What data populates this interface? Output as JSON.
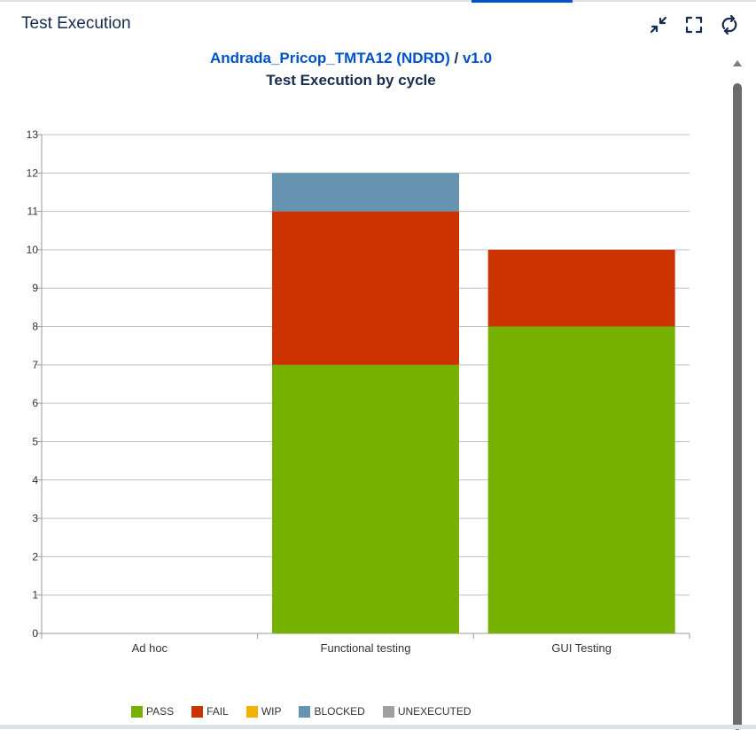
{
  "gadget": {
    "title": "Test Execution",
    "project_link": "Andrada_Pricop_TMTA12 (NDRD)",
    "separator": "/",
    "version_link": "v1.0",
    "subtitle": "Test Execution by cycle",
    "toolbar": {
      "collapse_icon": "collapse-icon",
      "fullscreen_icon": "fullscreen-icon",
      "refresh_icon": "refresh-icon"
    }
  },
  "chart_data": {
    "type": "bar",
    "stacked": true,
    "title": "Test Execution by cycle",
    "categories": [
      "Ad hoc",
      "Functional testing",
      "GUI Testing"
    ],
    "series": [
      {
        "name": "PASS",
        "color": "#76b000",
        "values": [
          0,
          7,
          8
        ]
      },
      {
        "name": "FAIL",
        "color": "#cc3300",
        "values": [
          0,
          4,
          2
        ]
      },
      {
        "name": "WIP",
        "color": "#f2b200",
        "values": [
          0,
          0,
          0
        ]
      },
      {
        "name": "BLOCKED",
        "color": "#6693b0",
        "values": [
          0,
          1,
          0
        ]
      },
      {
        "name": "UNEXECUTED",
        "color": "#a0a0a0",
        "values": [
          0,
          0,
          0
        ]
      }
    ],
    "ylim": [
      0,
      13
    ],
    "yticks": [
      0,
      1,
      2,
      3,
      4,
      5,
      6,
      7,
      8,
      9,
      10,
      11,
      12,
      13
    ],
    "grid": true,
    "legend_position": "bottom"
  }
}
